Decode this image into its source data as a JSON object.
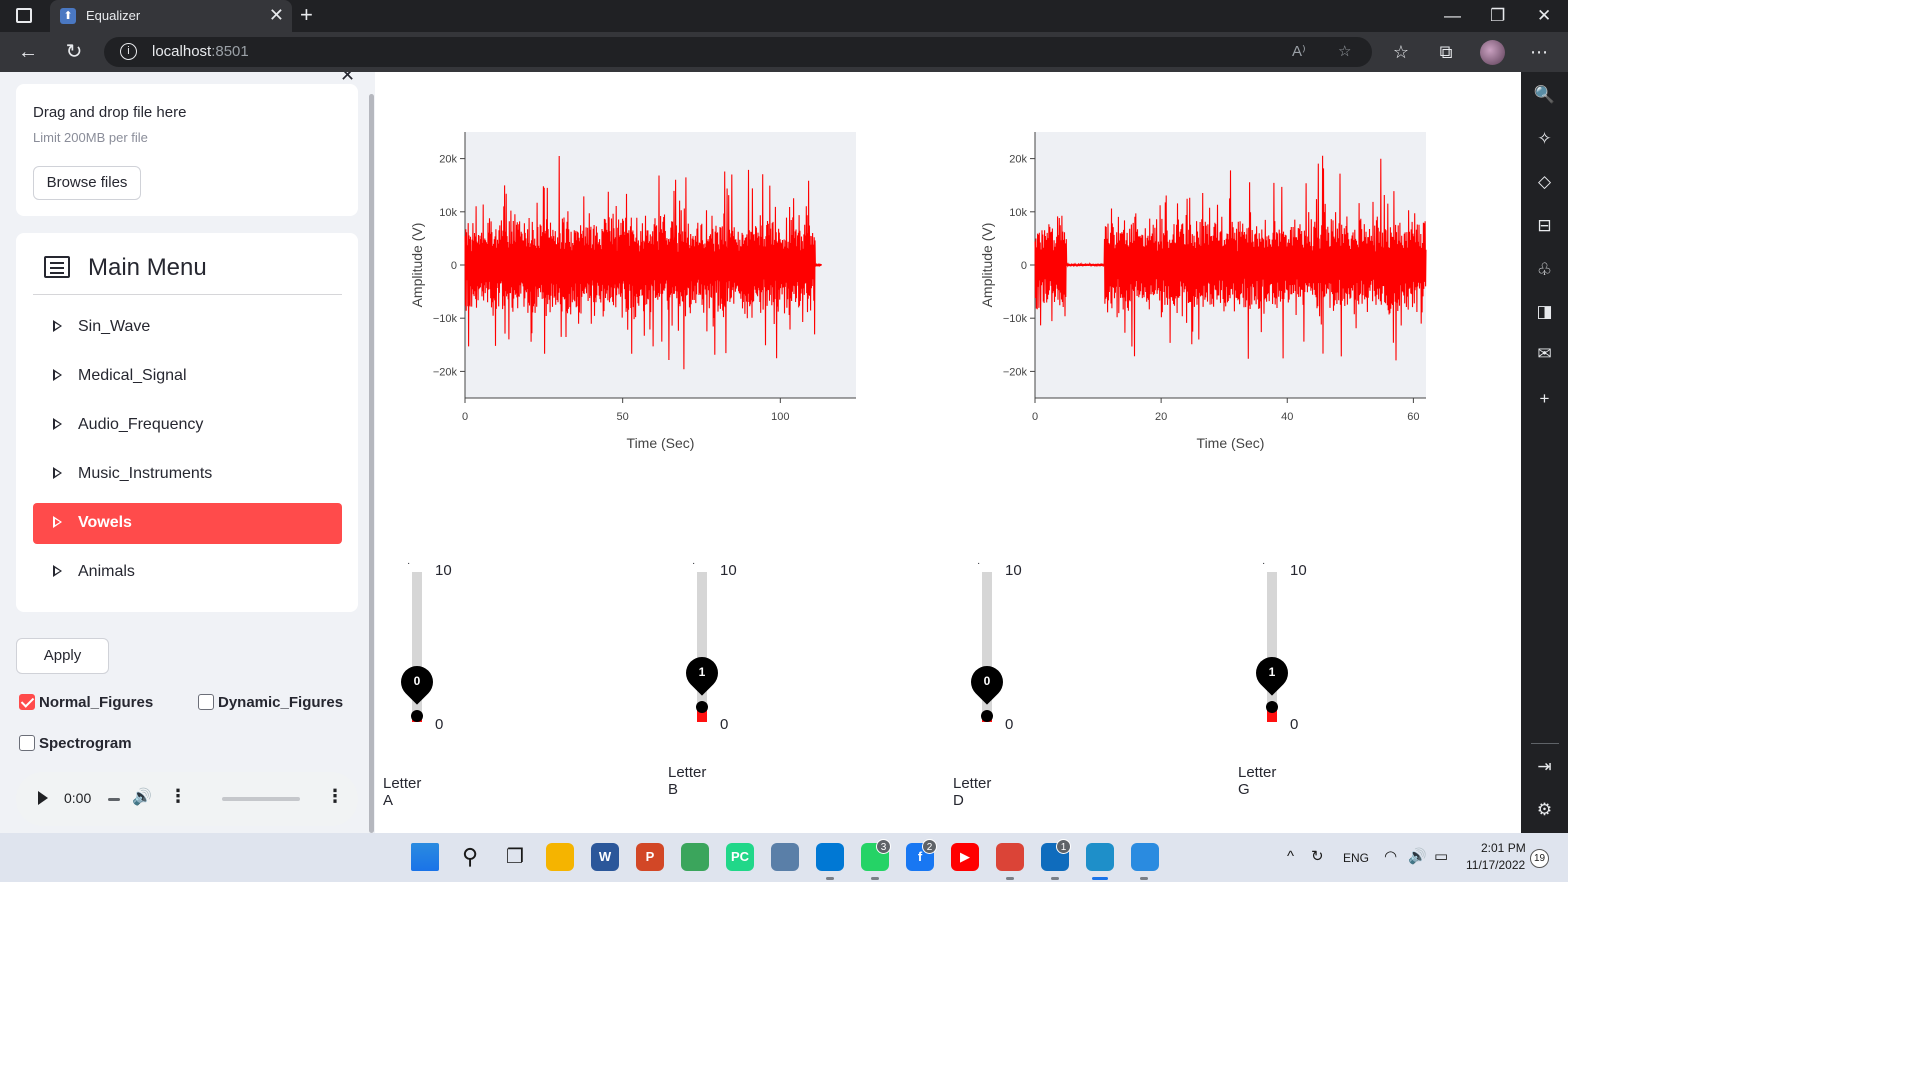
{
  "browser": {
    "tab_title": "Equalizer",
    "tab_favicon": "streamlit-favicon",
    "url_host": "localhost",
    "url_port": ":8501",
    "new_tab_symbol": "+",
    "close_tab_symbol": "✕",
    "read_aloud_text": "A⁾",
    "window_controls": {
      "minimize": "—",
      "restore": "❐",
      "close": "✕"
    }
  },
  "sidebar": {
    "close_symbol": "✕",
    "uploader": {
      "title": "Drag and drop file here",
      "subtitle": "Limit 200MB per file",
      "browse_label": "Browse files"
    },
    "menu": {
      "title": "Main Menu",
      "icon": "list-icon",
      "items": [
        {
          "label": "Sin_Wave",
          "active": false
        },
        {
          "label": "Medical_Signal",
          "active": false
        },
        {
          "label": "Audio_Frequency",
          "active": false
        },
        {
          "label": "Music_Instruments",
          "active": false
        },
        {
          "label": "Vowels",
          "active": true
        },
        {
          "label": "Animals",
          "active": false
        }
      ]
    },
    "apply_label": "Apply",
    "checkboxes": [
      {
        "label": "Normal_Figures",
        "checked": true
      },
      {
        "label": "Dynamic_Figures",
        "checked": false
      },
      {
        "label": "Spectrogram",
        "checked": false
      }
    ],
    "player": {
      "time": "0:00",
      "progress": 0
    }
  },
  "charts": [
    {
      "id": "input-signal",
      "type": "line",
      "xlabel": "Time (Sec)",
      "ylabel": "Amplitude (V)",
      "xlim": [
        0,
        124
      ],
      "ylim": [
        -25000,
        25000
      ],
      "xticks": [
        0,
        50,
        100
      ],
      "xtick_labels": [
        "0",
        "50",
        "100"
      ],
      "yticks": [
        20000,
        10000,
        0,
        -10000,
        -20000
      ],
      "ytick_labels": [
        "20k",
        "10k",
        "0",
        "−10k",
        "−20k"
      ],
      "series_color": "#ff0000",
      "signal_end": 113
    },
    {
      "id": "output-signal",
      "type": "line",
      "xlabel": "Time (Sec)",
      "ylabel": "Amplitude (V)",
      "xlim": [
        0,
        62
      ],
      "ylim": [
        -25000,
        25000
      ],
      "xticks": [
        0,
        20,
        40,
        60
      ],
      "xtick_labels": [
        "0",
        "20",
        "40",
        "60"
      ],
      "yticks": [
        20000,
        10000,
        0,
        -10000,
        -20000
      ],
      "ytick_labels": [
        "20k",
        "10k",
        "0",
        "−10k",
        "−20k"
      ],
      "series_color": "#ff0000",
      "signal_end": 62
    }
  ],
  "sliders": [
    {
      "label": "Letter A",
      "value": "0",
      "min": "0",
      "max": "10",
      "level": 0.0
    },
    {
      "label": "Letter B",
      "value": "1",
      "min": "0",
      "max": "10",
      "level": 0.1
    },
    {
      "label": "Letter D",
      "value": "0",
      "min": "0",
      "max": "10",
      "level": 0.0
    },
    {
      "label": "Letter G",
      "value": "1",
      "min": "0",
      "max": "10",
      "level": 0.1
    }
  ],
  "taskbar": {
    "apps": [
      {
        "name": "windows-start-icon",
        "color": "#1a73e8",
        "glyph": ""
      },
      {
        "name": "search-icon",
        "color": "#dfe4ee",
        "glyph": ""
      },
      {
        "name": "task-view-icon",
        "color": "#dfe4ee",
        "glyph": ""
      },
      {
        "name": "file-explorer-icon",
        "color": "#f5b400",
        "glyph": ""
      },
      {
        "name": "word-icon",
        "color": "#2b579a",
        "glyph": "W"
      },
      {
        "name": "powerpoint-icon",
        "color": "#d24726",
        "glyph": "P"
      },
      {
        "name": "app-green-icon",
        "color": "#3ba55c",
        "glyph": ""
      },
      {
        "name": "pycharm-icon",
        "color": "#21d789",
        "glyph": "PC"
      },
      {
        "name": "matlab-icon",
        "color": "#5a7fa8",
        "glyph": ""
      },
      {
        "name": "vscode-icon",
        "color": "#0078d4",
        "glyph": ""
      },
      {
        "name": "whatsapp-icon",
        "color": "#25d366",
        "glyph": ""
      },
      {
        "name": "facebook-icon",
        "color": "#1877f2",
        "glyph": "f"
      },
      {
        "name": "youtube-icon",
        "color": "#ff0000",
        "glyph": "▶"
      },
      {
        "name": "chrome-icon",
        "color": "#db4437",
        "glyph": ""
      },
      {
        "name": "mail-icon",
        "color": "#0f6cbd",
        "glyph": ""
      },
      {
        "name": "edge-icon",
        "color": "#1e8fc9",
        "glyph": ""
      },
      {
        "name": "photos-icon",
        "color": "#2a8be0",
        "glyph": ""
      }
    ],
    "badges": {
      "whatsapp": "3",
      "facebook": "2",
      "mail": "1"
    },
    "language": "ENG",
    "time": "2:01 PM",
    "date": "11/17/2022",
    "notifications": "19"
  }
}
